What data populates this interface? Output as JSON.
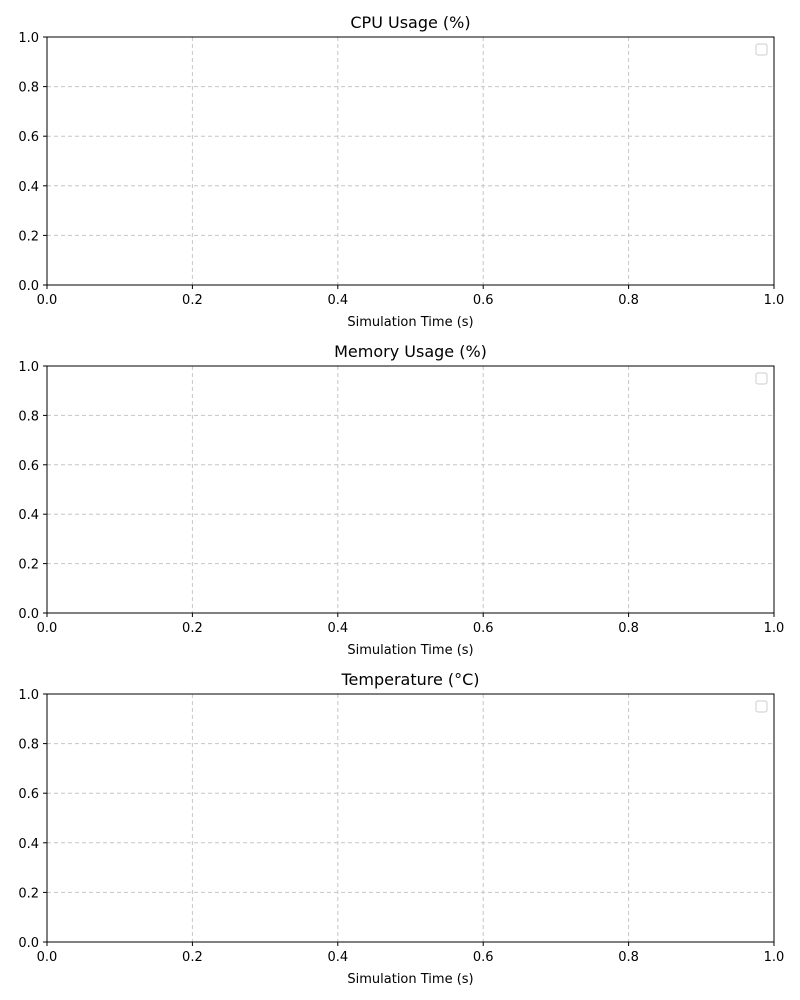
{
  "chart_data": [
    {
      "type": "line",
      "title": "CPU Usage (%)",
      "xlabel": "Simulation Time (s)",
      "ylabel": "",
      "xlim": [
        0,
        1
      ],
      "ylim": [
        0,
        1
      ],
      "xticks": [
        "0.0",
        "0.2",
        "0.4",
        "0.6",
        "0.8",
        "1.0"
      ],
      "yticks": [
        "0.0",
        "0.2",
        "0.4",
        "0.6",
        "0.8",
        "1.0"
      ],
      "grid": true,
      "legend": "top-right",
      "series": []
    },
    {
      "type": "line",
      "title": "Memory Usage (%)",
      "xlabel": "Simulation Time (s)",
      "ylabel": "",
      "xlim": [
        0,
        1
      ],
      "ylim": [
        0,
        1
      ],
      "xticks": [
        "0.0",
        "0.2",
        "0.4",
        "0.6",
        "0.8",
        "1.0"
      ],
      "yticks": [
        "0.0",
        "0.2",
        "0.4",
        "0.6",
        "0.8",
        "1.0"
      ],
      "grid": true,
      "legend": "top-right",
      "series": []
    },
    {
      "type": "line",
      "title": "Temperature (°C)",
      "xlabel": "Simulation Time (s)",
      "ylabel": "",
      "xlim": [
        0,
        1
      ],
      "ylim": [
        0,
        1
      ],
      "xticks": [
        "0.0",
        "0.2",
        "0.4",
        "0.6",
        "0.8",
        "1.0"
      ],
      "yticks": [
        "0.0",
        "0.2",
        "0.4",
        "0.6",
        "0.8",
        "1.0"
      ],
      "grid": true,
      "legend": "top-right",
      "series": []
    }
  ]
}
